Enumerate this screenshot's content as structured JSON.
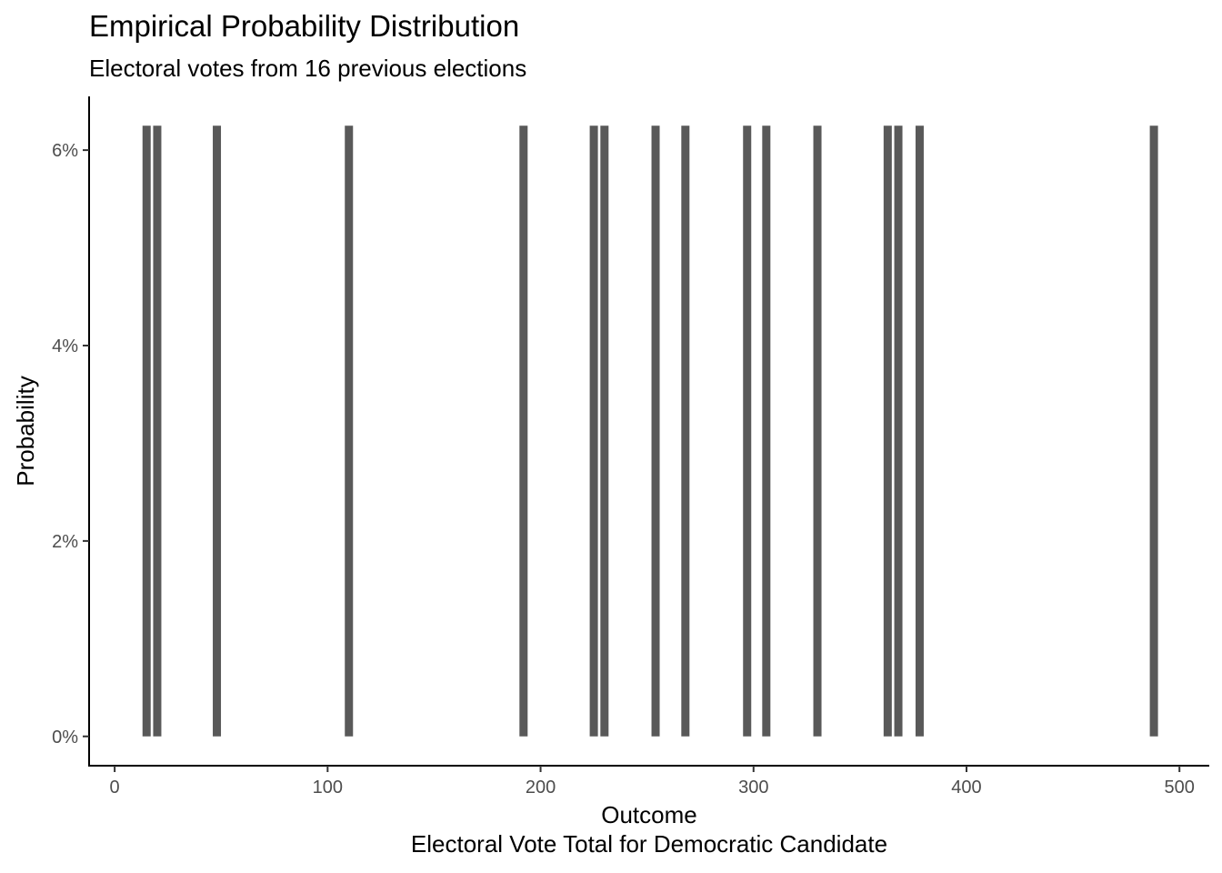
{
  "chart_data": {
    "type": "bar",
    "title": "Empirical Probability Distribution",
    "subtitle": "Electoral votes from 16 previous elections",
    "xlabel": "Outcome",
    "xlabel_sub": "Electoral Vote Total for Democratic Candidate",
    "ylabel": "Probability",
    "xlim": [
      -12,
      514
    ],
    "ylim": [
      -0.003,
      0.0655
    ],
    "x_ticks": [
      {
        "value": 0,
        "label": "0"
      },
      {
        "value": 100,
        "label": "100"
      },
      {
        "value": 200,
        "label": "200"
      },
      {
        "value": 300,
        "label": "300"
      },
      {
        "value": 400,
        "label": "400"
      },
      {
        "value": 500,
        "label": "500"
      }
    ],
    "y_ticks": [
      {
        "value": 0,
        "label": "0%"
      },
      {
        "value": 0.02,
        "label": "2%"
      },
      {
        "value": 0.04,
        "label": "4%"
      },
      {
        "value": 0.06,
        "label": "6%"
      }
    ],
    "grid": false,
    "bar_color": "#595959",
    "points": [
      {
        "x": 15,
        "y": 0.0625
      },
      {
        "x": 20,
        "y": 0.0625
      },
      {
        "x": 48,
        "y": 0.0625
      },
      {
        "x": 110,
        "y": 0.0625
      },
      {
        "x": 192,
        "y": 0.0625
      },
      {
        "x": 225,
        "y": 0.0625
      },
      {
        "x": 230,
        "y": 0.0625
      },
      {
        "x": 254,
        "y": 0.0625
      },
      {
        "x": 268,
        "y": 0.0625
      },
      {
        "x": 297,
        "y": 0.0625
      },
      {
        "x": 306,
        "y": 0.0625
      },
      {
        "x": 330,
        "y": 0.0625
      },
      {
        "x": 363,
        "y": 0.0625
      },
      {
        "x": 368,
        "y": 0.0625
      },
      {
        "x": 378,
        "y": 0.0625
      },
      {
        "x": 488,
        "y": 0.0625
      }
    ]
  }
}
